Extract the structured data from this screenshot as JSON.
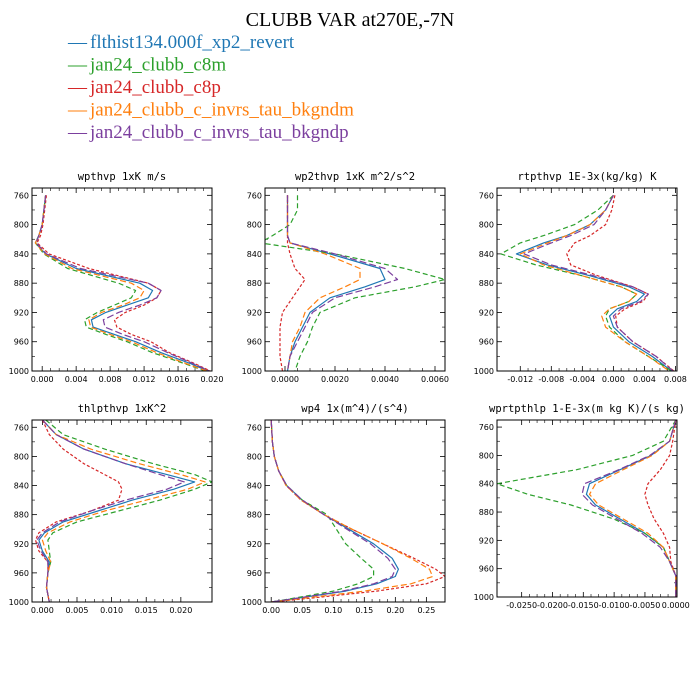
{
  "figure": {
    "title": "CLUBB VAR at270E,-7N"
  },
  "legend": [
    {
      "label": "flthist134.000f_xp2_revert",
      "color": "#1f77b4",
      "symbol": "—"
    },
    {
      "label": "jan24_clubb_c8m",
      "color": "#2ca02c",
      "symbol": "—"
    },
    {
      "label": "jan24_clubb_c8p",
      "color": "#d62728",
      "symbol": "—"
    },
    {
      "label": "jan24_clubb_c_invrs_tau_bkgndm",
      "color": "#ff7f0e",
      "symbol": "—"
    },
    {
      "label": "jan24_clubb_c_invrs_tau_bkgndp",
      "color": "#7b3f9e",
      "symbol": "—"
    }
  ],
  "chart_data": [
    {
      "type": "line",
      "title": "wpthvp  1xK m/s",
      "xlim": [
        -0.0012,
        0.02
      ],
      "ylim": [
        1000,
        750
      ],
      "xticks": [
        0.0,
        0.004,
        0.008,
        0.012,
        0.016,
        0.02
      ],
      "xtick_labels": [
        "0.000",
        "0.004",
        "0.008",
        "0.012",
        "0.016",
        "0.020"
      ],
      "yticks": [
        760,
        800,
        840,
        880,
        920,
        960,
        1000
      ],
      "y": [
        760,
        780,
        800,
        815,
        825,
        840,
        860,
        880,
        890,
        900,
        910,
        920,
        930,
        940,
        950,
        960,
        975,
        990,
        1000
      ],
      "series": [
        {
          "name": "flthist134.000f_xp2_revert",
          "values": [
            0.0004,
            0.0002,
            0.0,
            -0.0004,
            -0.0008,
            0.0004,
            0.004,
            0.0115,
            0.013,
            0.0125,
            0.01,
            0.0075,
            0.0058,
            0.006,
            0.0085,
            0.011,
            0.014,
            0.0175,
            0.0195
          ]
        },
        {
          "name": "jan24_clubb_c8m",
          "values": [
            0.0004,
            0.0002,
            0.0,
            -0.0004,
            -0.0008,
            0.0002,
            0.003,
            0.009,
            0.011,
            0.0105,
            0.0085,
            0.0065,
            0.005,
            0.0052,
            0.0075,
            0.01,
            0.013,
            0.0168,
            0.0192
          ]
        },
        {
          "name": "jan24_clubb_c8p",
          "values": [
            0.0005,
            0.0003,
            0.0001,
            -0.0002,
            -0.0006,
            0.0008,
            0.0055,
            0.0125,
            0.014,
            0.0135,
            0.012,
            0.0098,
            0.0085,
            0.0088,
            0.0105,
            0.0128,
            0.015,
            0.018,
            0.0198
          ]
        },
        {
          "name": "jan24_clubb_c_invrs_tau_bkgndm",
          "values": [
            0.0004,
            0.0002,
            0.0,
            -0.0004,
            -0.0008,
            0.0003,
            0.0035,
            0.0105,
            0.012,
            0.0115,
            0.0095,
            0.007,
            0.0055,
            0.0057,
            0.008,
            0.0105,
            0.0135,
            0.017,
            0.0194
          ]
        },
        {
          "name": "jan24_clubb_c_invrs_tau_bkgndp",
          "values": [
            0.0004,
            0.0002,
            0.0,
            -0.0004,
            -0.0007,
            0.0005,
            0.0045,
            0.0125,
            0.014,
            0.0135,
            0.0115,
            0.009,
            0.0072,
            0.0074,
            0.0095,
            0.012,
            0.0148,
            0.0178,
            0.0197
          ]
        }
      ]
    },
    {
      "type": "line",
      "title": "wp2thvp  1xK m^2/s^2",
      "xlim": [
        -0.0008,
        0.0064
      ],
      "ylim": [
        1000,
        750
      ],
      "xticks": [
        0.0,
        0.002,
        0.004,
        0.006
      ],
      "xtick_labels": [
        "0.0000",
        "0.0020",
        "0.0040",
        "0.0060"
      ],
      "yticks": [
        760,
        800,
        840,
        880,
        920,
        960,
        1000
      ],
      "y": [
        760,
        780,
        800,
        815,
        825,
        840,
        860,
        875,
        885,
        900,
        920,
        940,
        960,
        980,
        1000
      ],
      "series": [
        {
          "name": "flthist134.000f_xp2_revert",
          "values": [
            0.0001,
            0.0001,
            0.0001,
            0.0001,
            0.0002,
            0.0018,
            0.0038,
            0.004,
            0.0032,
            0.0018,
            0.001,
            0.0007,
            0.0004,
            0.0002,
            0.0001
          ]
        },
        {
          "name": "jan24_clubb_c8m",
          "values": [
            0.0005,
            0.0005,
            0.0002,
            -0.0005,
            -0.001,
            0.002,
            0.0048,
            0.0064,
            0.0052,
            0.0028,
            0.0014,
            0.0011,
            0.0009,
            0.0006,
            0.0004
          ]
        },
        {
          "name": "jan24_clubb_c8p",
          "values": [
            0.0001,
            0.0001,
            0.0001,
            0.0001,
            0.0001,
            0.0002,
            0.0004,
            0.0008,
            0.0006,
            0.0003,
            -0.0001,
            -0.0002,
            -0.0002,
            -0.0002,
            -0.0001
          ]
        },
        {
          "name": "jan24_clubb_c_invrs_tau_bkgndm",
          "values": [
            0.0001,
            0.0001,
            0.0001,
            0.0001,
            0.0002,
            0.0016,
            0.003,
            0.003,
            0.0024,
            0.0014,
            0.0008,
            0.0006,
            0.0003,
            0.0002,
            0.0001
          ]
        },
        {
          "name": "jan24_clubb_c_invrs_tau_bkgndp",
          "values": [
            0.0001,
            0.0001,
            0.0001,
            0.0001,
            0.0002,
            0.002,
            0.004,
            0.0045,
            0.0036,
            0.002,
            0.0011,
            0.0008,
            0.0005,
            0.0002,
            0.0001
          ]
        }
      ]
    },
    {
      "type": "line",
      "title": "rtpthvp  1E-3x(kg/kg) K",
      "xlim": [
        -0.015,
        0.0082
      ],
      "ylim": [
        1000,
        750
      ],
      "xticks": [
        -0.012,
        -0.008,
        -0.004,
        0.0,
        0.004,
        0.008
      ],
      "xtick_labels": [
        "-0.012",
        "-0.008",
        "-0.004",
        "0.000",
        "0.004",
        "0.008"
      ],
      "yticks": [
        760,
        800,
        840,
        880,
        920,
        960,
        1000
      ],
      "y": [
        760,
        780,
        800,
        815,
        825,
        840,
        855,
        870,
        885,
        895,
        905,
        915,
        925,
        940,
        960,
        980,
        1000
      ],
      "series": [
        {
          "name": "flthist134.000f_xp2_revert",
          "values": [
            0.0,
            -0.001,
            -0.003,
            -0.006,
            -0.009,
            -0.0125,
            -0.0085,
            -0.003,
            0.002,
            0.004,
            0.003,
            0.0005,
            -0.0005,
            0.0,
            0.002,
            0.005,
            0.0075
          ]
        },
        {
          "name": "jan24_clubb_c8m",
          "values": [
            0.0,
            -0.002,
            -0.005,
            -0.009,
            -0.012,
            -0.0145,
            -0.01,
            -0.004,
            0.001,
            0.003,
            0.002,
            -0.0005,
            -0.001,
            -0.0005,
            0.0015,
            0.0045,
            0.0075
          ]
        },
        {
          "name": "jan24_clubb_c8p",
          "values": [
            0.0002,
            -0.0002,
            -0.001,
            -0.003,
            -0.005,
            -0.006,
            -0.0055,
            -0.002,
            0.0025,
            0.0045,
            0.0038,
            0.0015,
            0.0003,
            0.0005,
            0.0025,
            0.0055,
            0.0078
          ]
        },
        {
          "name": "jan24_clubb_c_invrs_tau_bkgndm",
          "values": [
            0.0,
            -0.001,
            -0.003,
            -0.006,
            -0.0085,
            -0.012,
            -0.009,
            -0.004,
            0.001,
            0.003,
            0.002,
            -0.0005,
            -0.0015,
            -0.001,
            0.0015,
            0.0045,
            0.0072
          ]
        },
        {
          "name": "jan24_clubb_c_invrs_tau_bkgndp",
          "values": [
            0.0,
            -0.001,
            -0.0025,
            -0.0055,
            -0.008,
            -0.0115,
            -0.008,
            -0.0025,
            0.0025,
            0.0045,
            0.0035,
            0.001,
            0.0,
            0.0005,
            0.0025,
            0.0055,
            0.0077
          ]
        }
      ]
    },
    {
      "type": "line",
      "title": "thlpthvp  1xK^2",
      "xlim": [
        -0.0015,
        0.0245
      ],
      "ylim": [
        1000,
        750
      ],
      "xticks": [
        0.0,
        0.005,
        0.01,
        0.015,
        0.02
      ],
      "xtick_labels": [
        "0.000",
        "0.005",
        "0.010",
        "0.015",
        "0.020"
      ],
      "yticks": [
        760,
        800,
        840,
        880,
        920,
        960,
        1000
      ],
      "y": [
        750,
        770,
        790,
        810,
        825,
        835,
        845,
        860,
        875,
        890,
        905,
        915,
        930,
        945,
        960,
        980,
        1000
      ],
      "series": [
        {
          "name": "flthist134.000f_xp2_revert",
          "values": [
            0.0,
            0.002,
            0.006,
            0.012,
            0.018,
            0.022,
            0.019,
            0.013,
            0.008,
            0.003,
            0.0003,
            -0.0005,
            0.0,
            0.001,
            0.0008,
            0.0006,
            0.001
          ]
        },
        {
          "name": "jan24_clubb_c8m",
          "values": [
            0.0005,
            0.003,
            0.009,
            0.016,
            0.022,
            0.0245,
            0.022,
            0.017,
            0.011,
            0.005,
            0.0015,
            0.0008,
            0.001,
            0.0012,
            0.0008,
            0.0006,
            0.001
          ]
        },
        {
          "name": "jan24_clubb_c8p",
          "values": [
            0.0,
            0.001,
            0.003,
            0.006,
            0.009,
            0.011,
            0.0115,
            0.011,
            0.007,
            0.002,
            -0.0005,
            -0.001,
            -0.0005,
            0.0008,
            0.0008,
            0.0006,
            0.001
          ]
        },
        {
          "name": "jan24_clubb_c_invrs_tau_bkgndm",
          "values": [
            0.0,
            0.002,
            0.007,
            0.014,
            0.02,
            0.0235,
            0.021,
            0.015,
            0.009,
            0.004,
            0.0008,
            0.0,
            0.0005,
            0.0012,
            0.0008,
            0.0006,
            0.001
          ]
        },
        {
          "name": "jan24_clubb_c_invrs_tau_bkgndp",
          "values": [
            0.0,
            0.002,
            0.006,
            0.012,
            0.017,
            0.0205,
            0.018,
            0.012,
            0.007,
            0.0025,
            0.0,
            -0.0008,
            -0.0002,
            0.0008,
            0.0008,
            0.0006,
            0.001
          ]
        }
      ]
    },
    {
      "type": "line",
      "title": "wp4  1x(m^4)/(s^4)",
      "xlim": [
        -0.01,
        0.28
      ],
      "ylim": [
        1000,
        750
      ],
      "xticks": [
        0.0,
        0.05,
        0.1,
        0.15,
        0.2,
        0.25
      ],
      "xtick_labels": [
        "0.00",
        "0.05",
        "0.10",
        "0.15",
        "0.20",
        "0.25"
      ],
      "yticks": [
        760,
        800,
        840,
        880,
        920,
        960,
        1000
      ],
      "y": [
        750,
        780,
        800,
        820,
        840,
        860,
        880,
        900,
        920,
        940,
        955,
        965,
        975,
        985,
        995,
        1000
      ],
      "series": [
        {
          "name": "flthist134.000f_xp2_revert",
          "values": [
            0.0,
            0.002,
            0.005,
            0.012,
            0.025,
            0.05,
            0.085,
            0.125,
            0.165,
            0.195,
            0.205,
            0.2,
            0.17,
            0.12,
            0.04,
            0.0
          ]
        },
        {
          "name": "jan24_clubb_c8m",
          "values": [
            0.0,
            0.002,
            0.005,
            0.012,
            0.025,
            0.05,
            0.09,
            0.105,
            0.12,
            0.145,
            0.165,
            0.165,
            0.14,
            0.1,
            0.035,
            0.0
          ]
        },
        {
          "name": "jan24_clubb_c8p",
          "values": [
            0.0,
            0.002,
            0.005,
            0.012,
            0.024,
            0.048,
            0.085,
            0.13,
            0.18,
            0.23,
            0.265,
            0.28,
            0.25,
            0.17,
            0.06,
            0.0
          ]
        },
        {
          "name": "jan24_clubb_c_invrs_tau_bkgndm",
          "values": [
            0.0,
            0.002,
            0.005,
            0.012,
            0.024,
            0.048,
            0.085,
            0.13,
            0.18,
            0.225,
            0.255,
            0.26,
            0.225,
            0.15,
            0.05,
            0.0
          ]
        },
        {
          "name": "jan24_clubb_c_invrs_tau_bkgndp",
          "values": [
            0.0,
            0.002,
            0.005,
            0.012,
            0.025,
            0.05,
            0.085,
            0.122,
            0.16,
            0.188,
            0.2,
            0.195,
            0.165,
            0.115,
            0.04,
            0.0
          ]
        }
      ]
    },
    {
      "type": "line",
      "title": "wprtpthlp  1-E-3x(m kg K)/(s kg)",
      "xlim": [
        -0.029,
        0.0002
      ],
      "ylim": [
        1000,
        750
      ],
      "xticks": [
        -0.025,
        -0.02,
        -0.015,
        -0.01,
        -0.005,
        0.0
      ],
      "xtick_labels": [
        "-0.0250",
        "-0.0200",
        "-0.0150",
        "-0.0100",
        "-0.0050",
        "0.0000"
      ],
      "yticks": [
        760,
        800,
        840,
        880,
        920,
        960,
        1000
      ],
      "y": [
        750,
        780,
        800,
        820,
        840,
        855,
        870,
        890,
        910,
        930,
        950,
        970,
        990,
        1000
      ],
      "series": [
        {
          "name": "flthist134.000f_xp2_revert",
          "values": [
            0.0,
            -0.001,
            -0.004,
            -0.009,
            -0.014,
            -0.0145,
            -0.013,
            -0.009,
            -0.005,
            -0.002,
            -0.001,
            0.0,
            0.0,
            0.0
          ]
        },
        {
          "name": "jan24_clubb_c8m",
          "values": [
            0.0,
            -0.002,
            -0.007,
            -0.016,
            -0.029,
            -0.024,
            -0.017,
            -0.01,
            -0.005,
            -0.002,
            -0.001,
            0.0,
            0.0,
            0.0
          ]
        },
        {
          "name": "jan24_clubb_c8p",
          "values": [
            0.0,
            -0.0005,
            -0.001,
            -0.0025,
            -0.0045,
            -0.005,
            -0.0045,
            -0.0035,
            -0.002,
            -0.001,
            -0.0008,
            0.0,
            0.0,
            0.0
          ]
        },
        {
          "name": "jan24_clubb_c_invrs_tau_bkgndm",
          "values": [
            0.0,
            -0.001,
            -0.0038,
            -0.0085,
            -0.013,
            -0.014,
            -0.0125,
            -0.0085,
            -0.0045,
            -0.002,
            -0.001,
            0.0,
            0.0,
            0.0
          ]
        },
        {
          "name": "jan24_clubb_c_invrs_tau_bkgndp",
          "values": [
            0.0,
            -0.001,
            -0.0042,
            -0.0092,
            -0.0148,
            -0.0152,
            -0.0135,
            -0.0095,
            -0.0055,
            -0.0025,
            -0.001,
            0.0,
            0.0,
            0.0
          ]
        }
      ]
    }
  ],
  "series_styles": [
    {
      "color": "#1f77b4",
      "dash": ""
    },
    {
      "color": "#2ca02c",
      "dash": "5,3"
    },
    {
      "color": "#d62728",
      "dash": "3,2"
    },
    {
      "color": "#ff7f0e",
      "dash": "6,3"
    },
    {
      "color": "#7b3f9e",
      "dash": "7,3"
    }
  ]
}
